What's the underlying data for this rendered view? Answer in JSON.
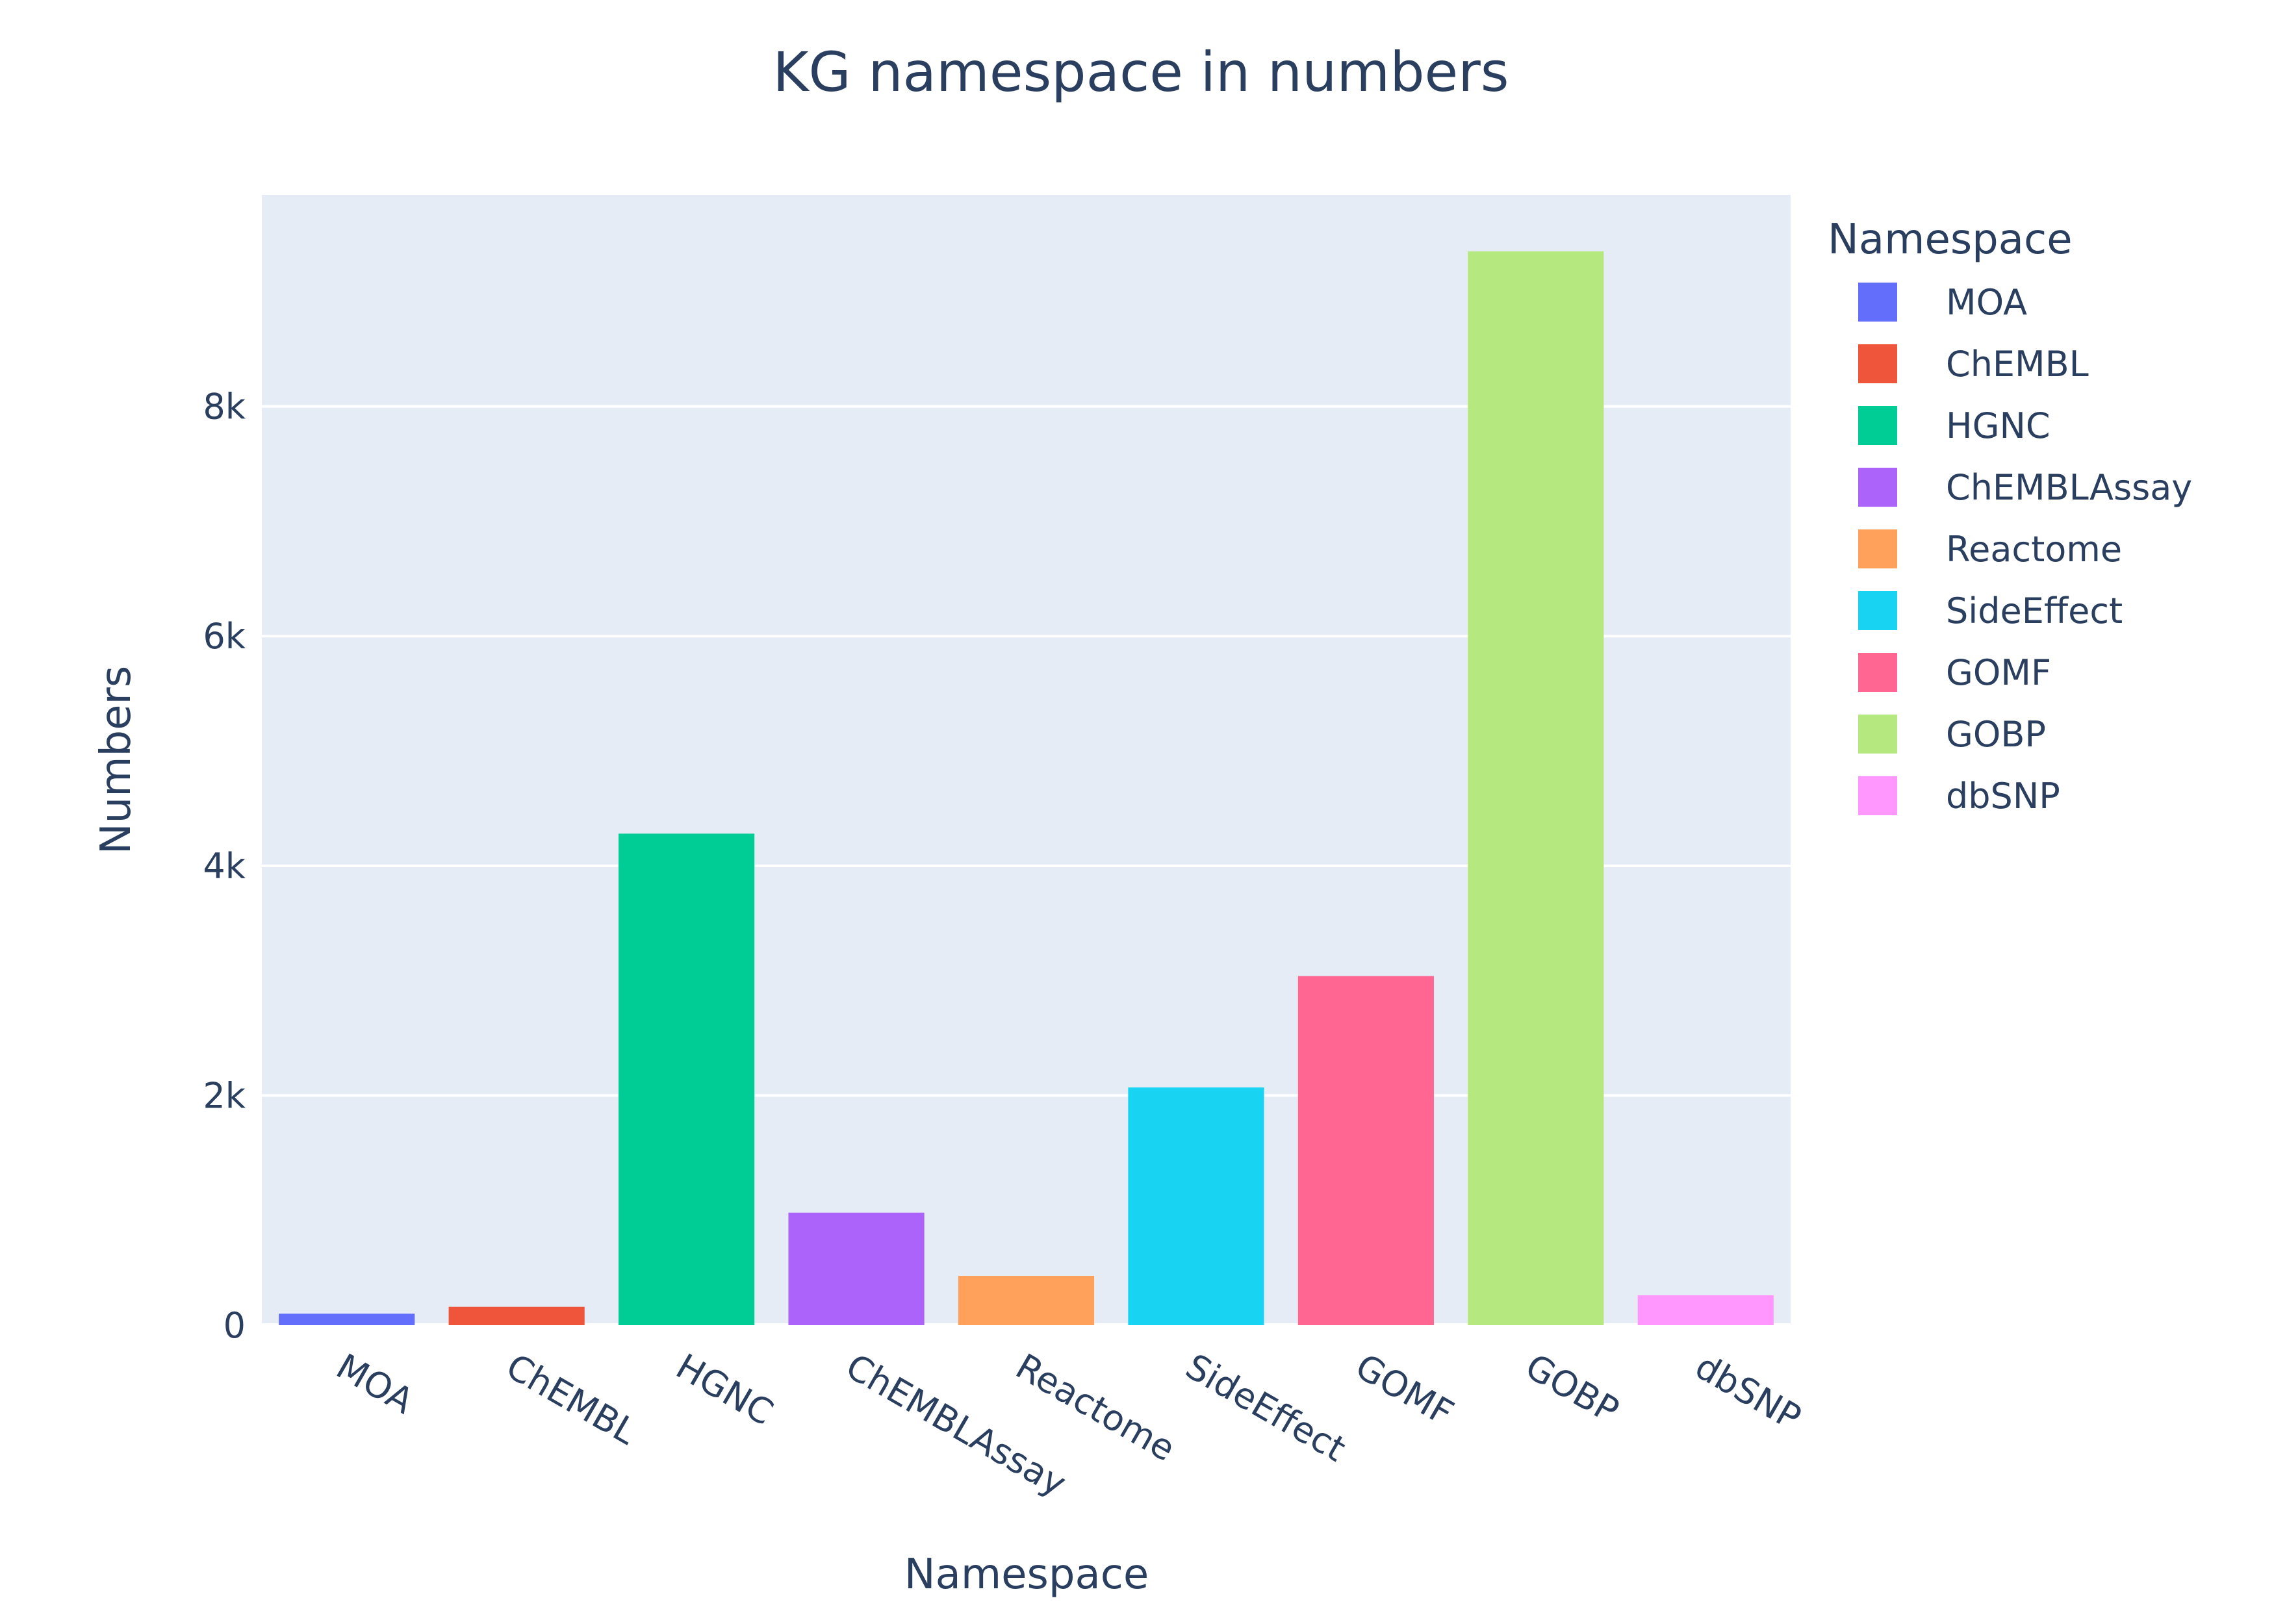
{
  "chart_data": {
    "type": "bar",
    "title": "KG namespace in numbers",
    "xlabel": "Namespace",
    "ylabel": "Numbers",
    "categories": [
      "MOA",
      "ChEMBL",
      "HGNC",
      "ChEMBLAssay",
      "Reactome",
      "SideEffect",
      "GOMF",
      "GOBP",
      "dbSNP"
    ],
    "values": [
      100,
      160,
      4280,
      980,
      430,
      2070,
      3040,
      9350,
      260
    ],
    "colors": [
      "#636efa",
      "#EF553B",
      "#00cc96",
      "#ab63fa",
      "#FFA15A",
      "#19d3f3",
      "#FF6692",
      "#B6E880",
      "#FF97FF"
    ],
    "ylim": [
      0,
      9842
    ],
    "yticks": [
      0,
      2000,
      4000,
      6000,
      8000
    ],
    "ytick_labels": [
      "0",
      "2k",
      "4k",
      "6k",
      "8k"
    ],
    "grid": true,
    "plot_background": "#E5ECF6",
    "legend": {
      "title": "Namespace",
      "placement": "right",
      "entries": [
        "MOA",
        "ChEMBL",
        "HGNC",
        "ChEMBLAssay",
        "Reactome",
        "SideEffect",
        "GOMF",
        "GOBP",
        "dbSNP"
      ]
    }
  }
}
